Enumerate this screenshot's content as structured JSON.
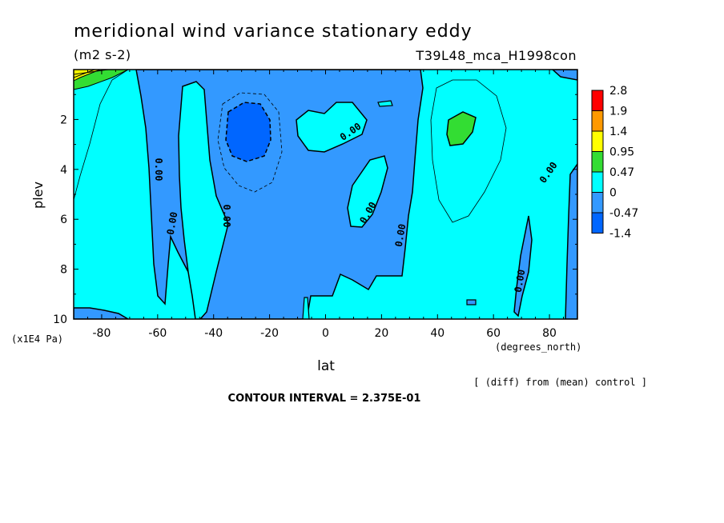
{
  "chart_data": {
    "type": "contour",
    "title": "meridional wind variance  stationary eddy",
    "units": "(m2 s-2)",
    "experiment": "T39L48_mca_H1998con",
    "xlabel": "lat",
    "xunits": "(degrees_north)",
    "ylabel": "plev",
    "yunits": "(x1E4 Pa)",
    "xlim": [
      -90,
      90
    ],
    "ylim": [
      0,
      10
    ],
    "y_inverted": true,
    "x_ticks": [
      -80,
      -60,
      -40,
      -20,
      0,
      20,
      40,
      60,
      80
    ],
    "x_tick_labels": [
      "-80",
      "-60",
      "-40",
      "-20",
      "0",
      "20",
      "40",
      "60",
      "80"
    ],
    "y_ticks": [
      2,
      4,
      6,
      8,
      10
    ],
    "y_tick_labels": [
      "2",
      "4",
      "6",
      "8",
      "10"
    ],
    "contour_interval_text": "CONTOUR INTERVAL = 2.375E-01",
    "note": "[ (diff) from (mean) control ]",
    "contour_labels": [
      "0.00",
      "0.00",
      "0.00",
      "0.00",
      "0.00",
      "0.00",
      "0.00",
      "0.00",
      "0.00"
    ],
    "colorbar": {
      "levels": [
        "2.8",
        "1.9",
        "1.4",
        "0.95",
        "0.47",
        "0",
        "-0.47",
        "-1.4"
      ],
      "colors": [
        "#ff0000",
        "#ff9900",
        "#ffff00",
        "#33dd33",
        "#00ffff",
        "#3399ff",
        "#0066ff"
      ]
    }
  }
}
